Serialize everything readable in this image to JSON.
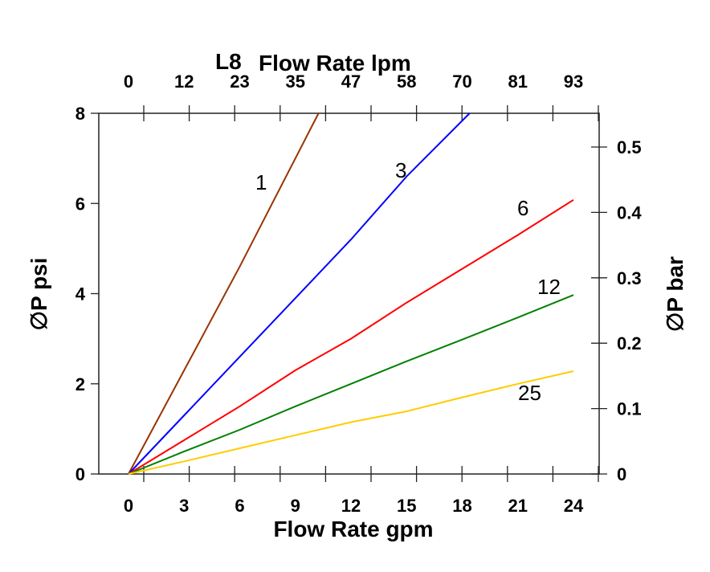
{
  "chart_data": {
    "type": "line",
    "title": "L8",
    "xlabel": "Flow Rate gpm",
    "x2label": "Flow Rate lpm",
    "ylabel": "∅P psi",
    "y2label": "∅P bar",
    "xlim": [
      0,
      24
    ],
    "ylim": [
      0,
      8
    ],
    "xticks": [
      "0",
      "3",
      "6",
      "9",
      "12",
      "15",
      "18",
      "21",
      "24"
    ],
    "x2ticks": [
      "0",
      "12",
      "23",
      "35",
      "47",
      "58",
      "70",
      "81",
      "93"
    ],
    "yticks": [
      "0",
      "2",
      "4",
      "6",
      "8"
    ],
    "y2ticks": [
      "0",
      "0.1",
      "0.2",
      "0.3",
      "0.4",
      "0.5"
    ],
    "grid": false,
    "series": [
      {
        "name": "1",
        "color": "#993300",
        "x": [
          0,
          3,
          6,
          10.25
        ],
        "y": [
          0,
          2.3,
          4.6,
          8
        ]
      },
      {
        "name": "3",
        "color": "#0000ff",
        "x": [
          0,
          3,
          6,
          9,
          12,
          15,
          18.4
        ],
        "y": [
          0,
          1.3,
          2.6,
          3.9,
          5.2,
          6.6,
          8
        ]
      },
      {
        "name": "6",
        "color": "#ff0000",
        "x": [
          0,
          3,
          6,
          9,
          12,
          15,
          18,
          21,
          24
        ],
        "y": [
          0,
          0.75,
          1.5,
          2.3,
          3.0,
          3.8,
          4.55,
          5.3,
          6.08
        ]
      },
      {
        "name": "12",
        "color": "#008000",
        "x": [
          0,
          3,
          6,
          9,
          12,
          15,
          18,
          21,
          24
        ],
        "y": [
          0,
          0.5,
          0.98,
          1.5,
          2.0,
          2.5,
          2.98,
          3.47,
          3.97
        ]
      },
      {
        "name": "25",
        "color": "#ffcc00",
        "x": [
          0,
          3,
          6,
          9,
          12,
          15,
          18,
          21,
          24
        ],
        "y": [
          0,
          0.28,
          0.57,
          0.86,
          1.15,
          1.39,
          1.7,
          2.0,
          2.28
        ]
      }
    ]
  }
}
